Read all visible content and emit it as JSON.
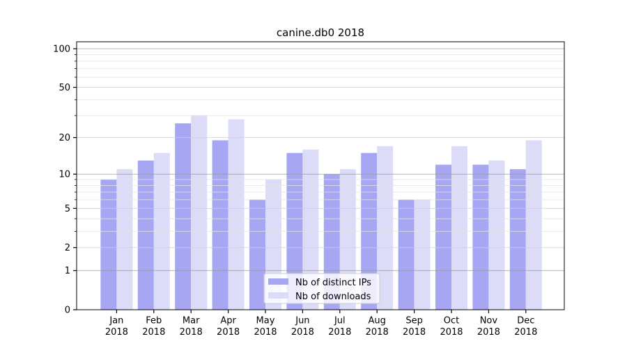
{
  "chart_data": {
    "type": "bar",
    "title": "canine.db0 2018",
    "x_year": "2018",
    "categories": [
      "Jan",
      "Feb",
      "Mar",
      "Apr",
      "May",
      "Jun",
      "Jul",
      "Aug",
      "Sep",
      "Oct",
      "Nov",
      "Dec"
    ],
    "series": [
      {
        "name": "Nb of distinct IPs",
        "color": "#a6a6f2",
        "values": [
          9,
          13,
          26,
          19,
          6,
          15,
          10,
          15,
          6,
          12,
          12,
          11
        ]
      },
      {
        "name": "Nb of downloads",
        "color": "#dcdcf8",
        "values": [
          11,
          15,
          30,
          28,
          9,
          16,
          11,
          17,
          6,
          17,
          13,
          19
        ]
      }
    ],
    "y_scale": "log1p",
    "y_major_ticks": [
      0,
      1,
      2,
      5,
      10,
      20,
      50,
      100
    ],
    "y_minor_ticks": [
      3,
      4,
      6,
      7,
      8,
      9,
      30,
      40,
      60,
      70,
      80,
      90
    ],
    "ylim": [
      0,
      113
    ],
    "grid": true,
    "legend_position": "lower center",
    "colors": {
      "frame": "#000000",
      "grid_decade": "#9a9a9a",
      "grid_major": "#cfcfcf",
      "grid_minor": "#e4e4e4",
      "legend_border": "#cccccc",
      "legend_bg": "#ffffff"
    }
  }
}
